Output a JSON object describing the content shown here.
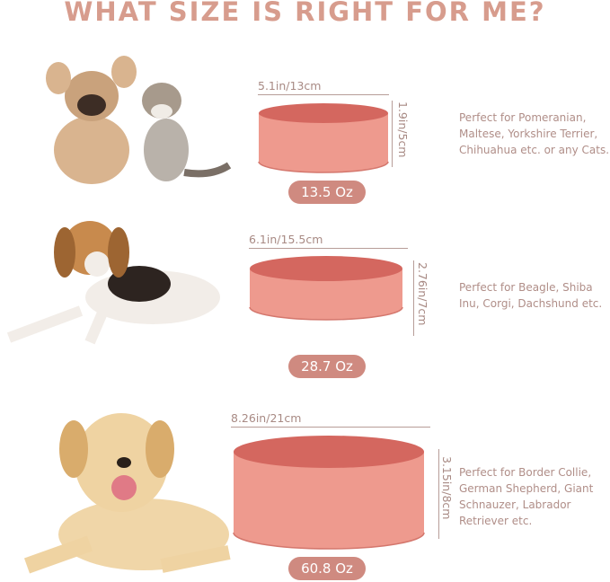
{
  "title": "WHAT SIZE IS RIGHT FOR ME?",
  "colors": {
    "title": "#d79c8d",
    "bowl_body": "#ee9a8e",
    "bowl_top": "#d4675f",
    "badge": "#cf8a80",
    "text": "#b08e88"
  },
  "sizes": [
    {
      "animal": "french-bulldog-and-kitten",
      "width": "5.1in/13cm",
      "height": "1.9in/5cm",
      "capacity": "13.5 Oz",
      "description": "Perfect for Pomeranian, Maltese, Yorkshire Terrier, Chihuahua etc. or any Cats."
    },
    {
      "animal": "beagle",
      "width": "6.1in/15.5cm",
      "height": "2.76in/7cm",
      "capacity": "28.7 Oz",
      "description": "Perfect for Beagle, Shiba Inu, Corgi, Dachshund etc."
    },
    {
      "animal": "labrador",
      "width": "8.26in/21cm",
      "height": "3.15in/8cm",
      "capacity": "60.8 Oz",
      "description": "Perfect for Border Collie, German Shepherd, Giant Schnauzer, Labrador Retriever etc."
    }
  ]
}
